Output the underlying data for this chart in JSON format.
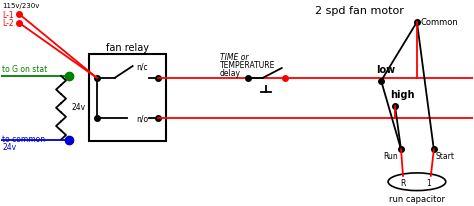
{
  "title": "2 spd fan motor",
  "bg_color": "#ffffff",
  "labels": {
    "L1": "L-1",
    "L2": "L-2",
    "voltage": "115v/230v",
    "to_G": "to G on stat",
    "v24": "24v",
    "to_common": "to common",
    "v24b": "24v",
    "fan_relay": "fan relay",
    "nc": "n/c",
    "no": "n/o",
    "time_delay_1": "TIME or",
    "time_delay_2": "TEMPERATURE",
    "time_delay_3": "delay",
    "common": "Common",
    "low": "low",
    "high": "high",
    "run": "Run",
    "start": "Start",
    "run_cap": "run capacitor",
    "R": "R",
    "one": "1"
  },
  "colors": {
    "red": "#ff0000",
    "green": "#008000",
    "blue": "#0000cc",
    "black": "#000000",
    "white": "#ffffff"
  }
}
